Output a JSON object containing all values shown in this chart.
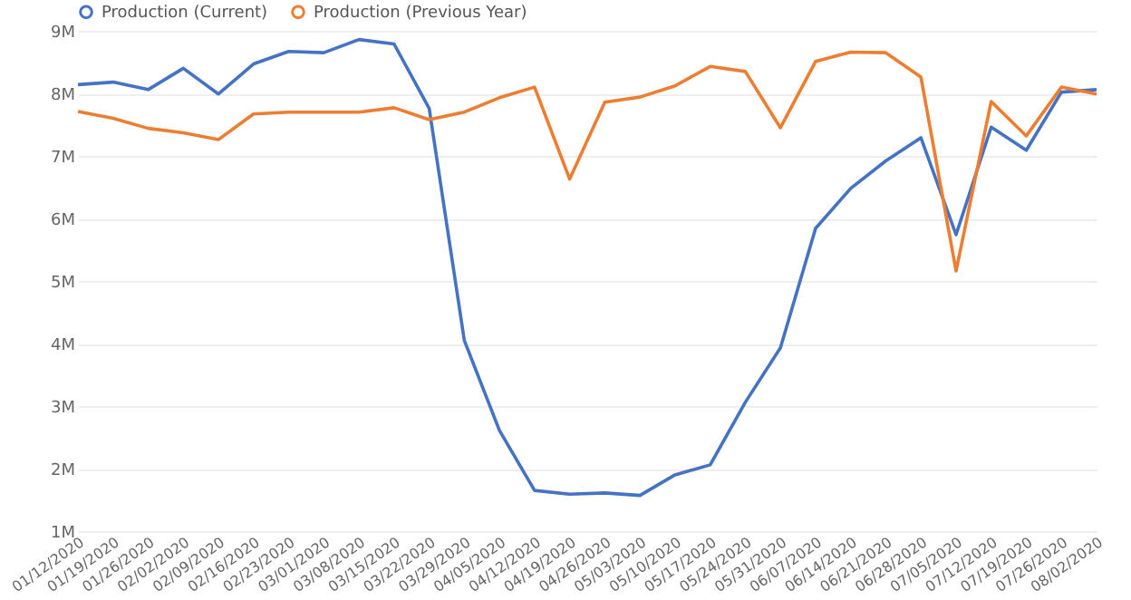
{
  "chart_data": {
    "type": "line",
    "categories": [
      "01/12/2020",
      "01/19/2020",
      "01/26/2020",
      "02/02/2020",
      "02/09/2020",
      "02/16/2020",
      "02/23/2020",
      "03/01/2020",
      "03/08/2020",
      "03/15/2020",
      "03/22/2020",
      "03/29/2020",
      "04/05/2020",
      "04/12/2020",
      "04/19/2020",
      "04/26/2020",
      "05/03/2020",
      "05/10/2020",
      "05/17/2020",
      "05/24/2020",
      "05/31/2020",
      "06/07/2020",
      "06/14/2020",
      "06/21/2020",
      "06/28/2020",
      "07/05/2020",
      "07/12/2020",
      "07/19/2020",
      "07/26/2020",
      "08/02/2020"
    ],
    "series": [
      {
        "name": "Production (Current)",
        "color": "#4472c4",
        "values": [
          8140000,
          8180000,
          8060000,
          8400000,
          7990000,
          8470000,
          8670000,
          8650000,
          8860000,
          8790000,
          7760000,
          4050000,
          2610000,
          1650000,
          1590000,
          1610000,
          1570000,
          1900000,
          2060000,
          3060000,
          3930000,
          5840000,
          6480000,
          6920000,
          7290000,
          5740000,
          7460000,
          7090000,
          8020000,
          8060000
        ]
      },
      {
        "name": "Production (Previous Year)",
        "color": "#ed7d31",
        "values": [
          7710000,
          7600000,
          7440000,
          7370000,
          7260000,
          7670000,
          7700000,
          7700000,
          7700000,
          7770000,
          7580000,
          7700000,
          7930000,
          8100000,
          6630000,
          7860000,
          7940000,
          8120000,
          8430000,
          8350000,
          7450000,
          8510000,
          8660000,
          8650000,
          8260000,
          5160000,
          7870000,
          7320000,
          8100000,
          7990000
        ]
      }
    ],
    "ylim": [
      1000000,
      9000000
    ],
    "yticks": [
      {
        "value": 1000000,
        "label": "1M"
      },
      {
        "value": 2000000,
        "label": "2M"
      },
      {
        "value": 3000000,
        "label": "3M"
      },
      {
        "value": 4000000,
        "label": "4M"
      },
      {
        "value": 5000000,
        "label": "5M"
      },
      {
        "value": 6000000,
        "label": "6M"
      },
      {
        "value": 7000000,
        "label": "7M"
      },
      {
        "value": 8000000,
        "label": "8M"
      },
      {
        "value": 9000000,
        "label": "9M"
      }
    ],
    "grid": "y",
    "legend": "top left",
    "marker": "none",
    "line_style": "solid"
  }
}
